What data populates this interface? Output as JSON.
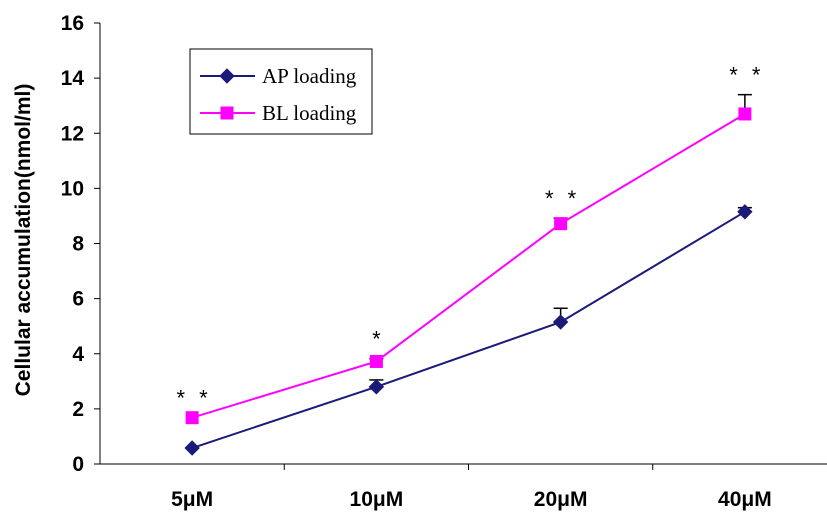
{
  "chart_data": {
    "type": "line",
    "title": "",
    "xlabel": "",
    "ylabel": "Cellular accumulation(nmol/ml)",
    "categories": [
      "5μM",
      "10μM",
      "20μM",
      "40μM"
    ],
    "ylim": [
      0,
      16
    ],
    "yticks": [
      0,
      2,
      4,
      6,
      8,
      10,
      12,
      14,
      16
    ],
    "grid": false,
    "legend_position": "top-left",
    "series": [
      {
        "name": "AP loading",
        "color": "#1a1a7a",
        "marker": "diamond",
        "values": [
          0.58,
          2.8,
          5.15,
          9.15
        ],
        "errors": [
          0.0,
          0.25,
          0.5,
          0.15
        ]
      },
      {
        "name": "BL loading",
        "color": "#ff00ff",
        "marker": "square",
        "values": [
          1.68,
          3.72,
          8.72,
          12.7
        ],
        "errors": [
          0.0,
          0.1,
          0.2,
          0.7
        ]
      }
    ],
    "annotations": [
      "* *",
      "*",
      "* *",
      "* *"
    ]
  }
}
